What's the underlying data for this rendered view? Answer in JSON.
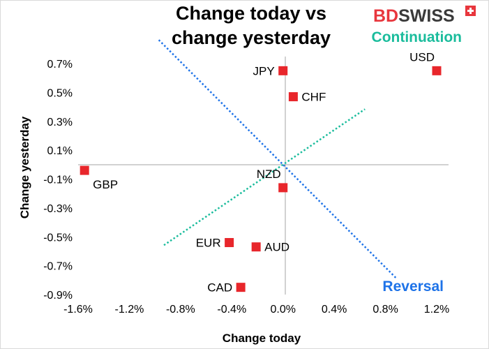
{
  "logo": {
    "part1": "BD",
    "part2": "SWISS",
    "accent_color": "#e8363d"
  },
  "chart_data": {
    "type": "scatter",
    "title_lines": [
      "Change today vs",
      "change yesterday"
    ],
    "xlabel": "Change today",
    "ylabel": "Change yesterday",
    "xlim": [
      -1.6,
      1.2
    ],
    "ylim": [
      -0.9,
      0.7
    ],
    "xticks": [
      {
        "value": -1.6,
        "label": "-1.6%"
      },
      {
        "value": -1.2,
        "label": "-1.2%"
      },
      {
        "value": -0.8,
        "label": "-0.8%"
      },
      {
        "value": -0.4,
        "label": "-0.4%"
      },
      {
        "value": 0.0,
        "label": "0.0%"
      },
      {
        "value": 0.4,
        "label": "0.4%"
      },
      {
        "value": 0.8,
        "label": "0.8%"
      },
      {
        "value": 1.2,
        "label": "1.2%"
      }
    ],
    "yticks": [
      {
        "value": 0.7,
        "label": "0.7%"
      },
      {
        "value": 0.5,
        "label": "0.5%"
      },
      {
        "value": 0.3,
        "label": "0.3%"
      },
      {
        "value": 0.1,
        "label": "0.1%"
      },
      {
        "value": -0.1,
        "label": "-0.1%"
      },
      {
        "value": -0.3,
        "label": "-0.3%"
      },
      {
        "value": -0.5,
        "label": "-0.5%"
      },
      {
        "value": -0.7,
        "label": "-0.7%"
      },
      {
        "value": -0.9,
        "label": "-0.9%"
      }
    ],
    "points": [
      {
        "label": "USD",
        "x": 1.2,
        "y": 0.65,
        "label_pos": "above-left"
      },
      {
        "label": "JPY",
        "x": 0.0,
        "y": 0.65,
        "label_pos": "left"
      },
      {
        "label": "CHF",
        "x": 0.08,
        "y": 0.47,
        "label_pos": "right"
      },
      {
        "label": "GBP",
        "x": -1.55,
        "y": -0.04,
        "label_pos": "below-right"
      },
      {
        "label": "NZD",
        "x": 0.0,
        "y": -0.16,
        "label_pos": "above-left"
      },
      {
        "label": "EUR",
        "x": -0.42,
        "y": -0.54,
        "label_pos": "left"
      },
      {
        "label": "AUD",
        "x": -0.21,
        "y": -0.57,
        "label_pos": "right"
      },
      {
        "label": "CAD",
        "x": -0.33,
        "y": -0.85,
        "label_pos": "left"
      }
    ],
    "marker_color": "#e8262b",
    "reference_lines": [
      {
        "name": "Continuation",
        "slope": 0.6,
        "x_from": -0.93,
        "x_to": 0.64,
        "color": "#1abc9c"
      },
      {
        "name": "Reversal",
        "slope": -0.89,
        "x_from": -0.97,
        "x_to": 0.88,
        "color": "#1e73e8"
      }
    ]
  }
}
